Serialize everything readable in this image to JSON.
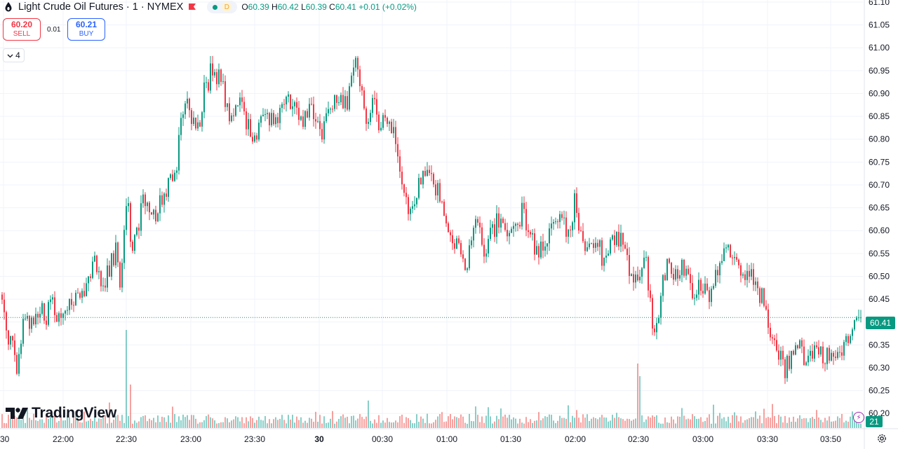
{
  "header": {
    "title": "Light Crude Oil Futures · 1 · NYMEX",
    "interval_badge": "D",
    "ohlc": {
      "o_label": "O",
      "o": "60.39",
      "h_label": "H",
      "h": "60.42",
      "l_label": "L",
      "l": "60.39",
      "c_label": "C",
      "c": "60.41",
      "change": "+0.01 (+0.02%)"
    }
  },
  "trade": {
    "sell_price": "60.20",
    "sell_label": "SELL",
    "spread": "0.01",
    "buy_price": "60.21",
    "buy_label": "BUY"
  },
  "indicators_toggle": {
    "count": "4"
  },
  "branding": {
    "logo_text": "TradingView"
  },
  "price_axis": {
    "last_price": "60.41",
    "volume_value": "21"
  },
  "colors": {
    "up": "#089981",
    "down": "#f23645",
    "up_volume": "#26a69a",
    "down_volume": "#ef5350",
    "grid": "#f0f3fa"
  },
  "icons": [
    "symbol-logo-icon",
    "red-flag-icon",
    "chevron-down-icon",
    "lightning-icon",
    "settings-icon",
    "tradingview-logo-icon"
  ],
  "chart_data": {
    "type": "candlestick",
    "y_axis": {
      "range": [
        60.185,
        61.1
      ],
      "ticks": [
        "61.10",
        "61.05",
        "61.00",
        "60.95",
        "60.90",
        "60.85",
        "60.80",
        "60.75",
        "60.70",
        "60.65",
        "60.60",
        "60.55",
        "60.50",
        "60.45",
        "60.40",
        "60.35",
        "60.30",
        "60.25",
        "60.20"
      ]
    },
    "x_axis": {
      "tick_labels": [
        {
          "label": "30",
          "bold": false
        },
        {
          "label": "22:00",
          "bold": false
        },
        {
          "label": "22:30",
          "bold": false
        },
        {
          "label": "23:00",
          "bold": false
        },
        {
          "label": "23:30",
          "bold": false
        },
        {
          "label": "30",
          "bold": true
        },
        {
          "label": "00:30",
          "bold": false
        },
        {
          "label": "01:00",
          "bold": false
        },
        {
          "label": "01:30",
          "bold": false
        },
        {
          "label": "02:00",
          "bold": false
        },
        {
          "label": "02:30",
          "bold": false
        },
        {
          "label": "03:00",
          "bold": false
        },
        {
          "label": "03:30",
          "bold": false
        },
        {
          "label": "03:50",
          "bold": false
        }
      ]
    },
    "price_anchors": [
      [
        0,
        60.46
      ],
      [
        10,
        60.38
      ],
      [
        17,
        60.34
      ],
      [
        22,
        60.3
      ],
      [
        28,
        60.36
      ],
      [
        36,
        60.42
      ],
      [
        46,
        60.38
      ],
      [
        56,
        60.44
      ],
      [
        64,
        60.4
      ],
      [
        72,
        60.44
      ],
      [
        84,
        60.4
      ],
      [
        100,
        60.43
      ],
      [
        115,
        60.46
      ],
      [
        125,
        60.5
      ],
      [
        136,
        60.54
      ],
      [
        145,
        60.46
      ],
      [
        155,
        60.52
      ],
      [
        164,
        60.56
      ],
      [
        172,
        60.48
      ],
      [
        180,
        60.68
      ],
      [
        188,
        60.55
      ],
      [
        196,
        60.6
      ],
      [
        205,
        60.68
      ],
      [
        214,
        60.62
      ],
      [
        222,
        60.64
      ],
      [
        232,
        60.68
      ],
      [
        242,
        60.72
      ],
      [
        252,
        60.76
      ],
      [
        262,
        60.9
      ],
      [
        270,
        60.86
      ],
      [
        280,
        60.82
      ],
      [
        290,
        60.9
      ],
      [
        300,
        60.95
      ],
      [
        312,
        60.94
      ],
      [
        322,
        60.88
      ],
      [
        332,
        60.84
      ],
      [
        344,
        60.89
      ],
      [
        356,
        60.8
      ],
      [
        366,
        60.82
      ],
      [
        378,
        60.86
      ],
      [
        392,
        60.84
      ],
      [
        406,
        60.89
      ],
      [
        418,
        60.86
      ],
      [
        430,
        60.84
      ],
      [
        444,
        60.88
      ],
      [
        456,
        60.8
      ],
      [
        468,
        60.86
      ],
      [
        480,
        60.9
      ],
      [
        494,
        60.88
      ],
      [
        506,
        60.98
      ],
      [
        514,
        60.9
      ],
      [
        522,
        60.84
      ],
      [
        532,
        60.88
      ],
      [
        542,
        60.82
      ],
      [
        554,
        60.86
      ],
      [
        562,
        60.8
      ],
      [
        572,
        60.68
      ],
      [
        582,
        60.63
      ],
      [
        592,
        60.68
      ],
      [
        602,
        60.73
      ],
      [
        612,
        60.7
      ],
      [
        622,
        60.7
      ],
      [
        632,
        60.62
      ],
      [
        644,
        60.58
      ],
      [
        654,
        60.56
      ],
      [
        664,
        60.52
      ],
      [
        676,
        60.62
      ],
      [
        688,
        60.56
      ],
      [
        700,
        60.6
      ],
      [
        710,
        60.62
      ],
      [
        722,
        60.6
      ],
      [
        734,
        60.62
      ],
      [
        744,
        60.64
      ],
      [
        754,
        60.58
      ],
      [
        764,
        60.56
      ],
      [
        774,
        60.58
      ],
      [
        786,
        60.6
      ],
      [
        796,
        60.63
      ],
      [
        808,
        60.6
      ],
      [
        818,
        60.66
      ],
      [
        828,
        60.58
      ],
      [
        838,
        60.56
      ],
      [
        850,
        60.58
      ],
      [
        860,
        60.52
      ],
      [
        872,
        60.58
      ],
      [
        884,
        60.58
      ],
      [
        896,
        60.52
      ],
      [
        908,
        60.48
      ],
      [
        920,
        60.54
      ],
      [
        930,
        60.36
      ],
      [
        940,
        60.44
      ],
      [
        950,
        60.54
      ],
      [
        960,
        60.5
      ],
      [
        970,
        60.52
      ],
      [
        980,
        60.5
      ],
      [
        990,
        60.46
      ],
      [
        1000,
        60.48
      ],
      [
        1012,
        60.44
      ],
      [
        1022,
        60.52
      ],
      [
        1034,
        60.56
      ],
      [
        1046,
        60.52
      ],
      [
        1056,
        60.5
      ],
      [
        1066,
        60.5
      ],
      [
        1078,
        60.48
      ],
      [
        1090,
        60.44
      ],
      [
        1100,
        60.36
      ],
      [
        1110,
        60.34
      ],
      [
        1118,
        60.3
      ],
      [
        1128,
        60.32
      ],
      [
        1140,
        60.34
      ],
      [
        1150,
        60.32
      ],
      [
        1160,
        60.34
      ],
      [
        1170,
        60.32
      ],
      [
        1182,
        60.34
      ],
      [
        1194,
        60.33
      ],
      [
        1206,
        60.36
      ],
      [
        1216,
        60.4
      ],
      [
        1226,
        60.41
      ]
    ],
    "volume_spikes": [
      {
        "x": 180,
        "volume": 140
      },
      {
        "x": 185,
        "volume": 62
      },
      {
        "x": 908,
        "volume": 92
      },
      {
        "x": 912,
        "volume": 74
      }
    ],
    "last_price": 60.41,
    "last_volume": 21
  }
}
